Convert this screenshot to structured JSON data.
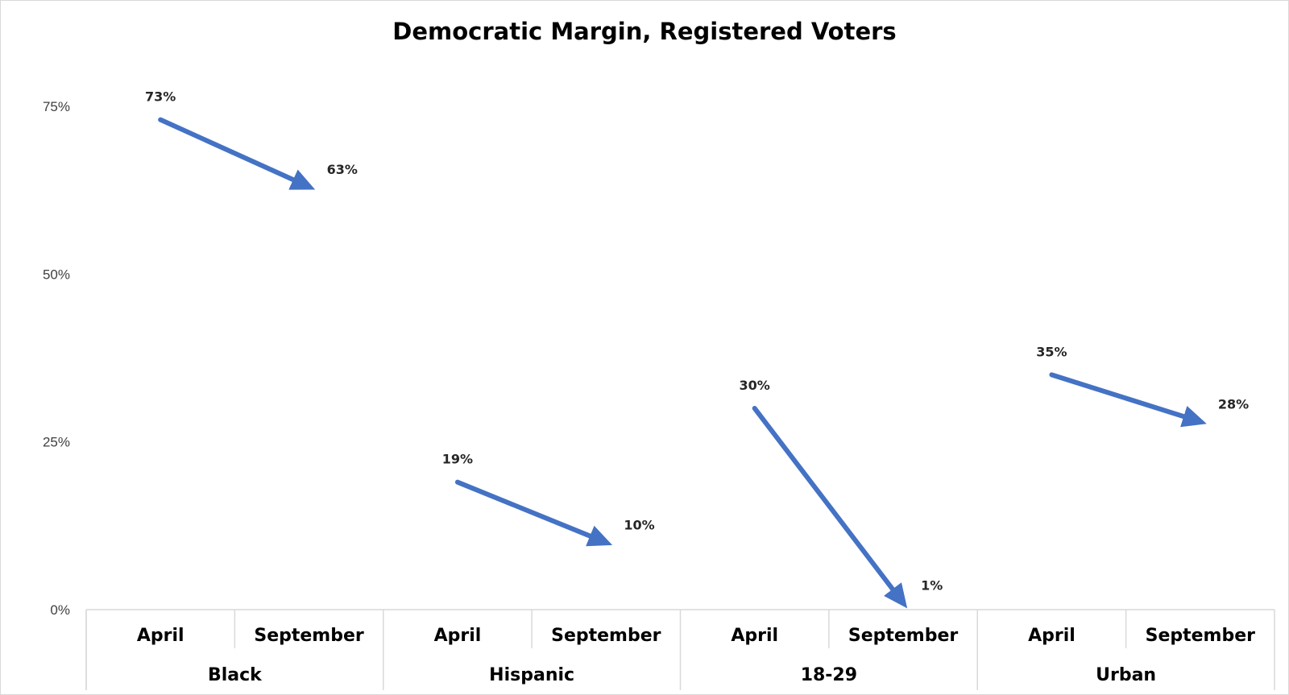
{
  "chart_data": {
    "type": "line",
    "title": "Democratic Margin, Registered Voters",
    "xlabel": "",
    "ylabel": "",
    "ylim": [
      0,
      75
    ],
    "yticks": [
      "0%",
      "25%",
      "50%",
      "75%"
    ],
    "ytick_values": [
      0,
      25,
      50,
      75
    ],
    "grid": false,
    "groups": [
      "Black",
      "Hispanic",
      "18-29",
      "Urban"
    ],
    "periods": [
      "April",
      "September"
    ],
    "series": [
      {
        "group": "Black",
        "values": [
          73,
          63
        ],
        "labels": [
          "73%",
          "63%"
        ]
      },
      {
        "group": "Hispanic",
        "values": [
          19,
          10
        ],
        "labels": [
          "19%",
          "10%"
        ]
      },
      {
        "group": "18-29",
        "values": [
          30,
          1
        ],
        "labels": [
          "30%",
          "1%"
        ]
      },
      {
        "group": "Urban",
        "values": [
          35,
          28
        ],
        "labels": [
          "35%",
          "28%"
        ]
      }
    ],
    "arrow_color": "#4472C4"
  }
}
